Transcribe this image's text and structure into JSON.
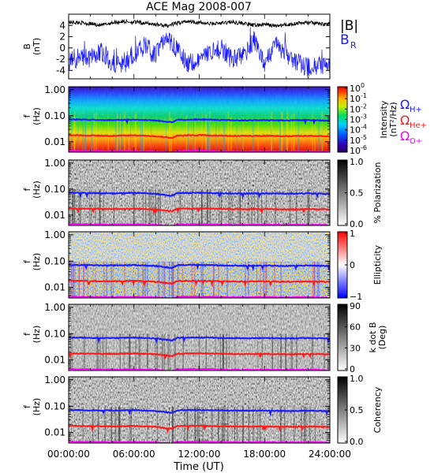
{
  "figure": {
    "title": "ACE Mag 2008-007",
    "xlabel": "Time (UT)",
    "x_ticks": [
      "00:00:00",
      "06:00:00",
      "12:00:00",
      "18:00:00",
      "24:00:00"
    ],
    "x_range_hours": [
      0,
      24
    ]
  },
  "chart_data": [
    {
      "type": "line",
      "panel": "magnetic-field",
      "ylabel": "B\n(nT)",
      "ylim": [
        -5.5,
        6
      ],
      "y_ticks": [
        "4",
        "2",
        "0",
        "-2",
        "-4"
      ],
      "y_tick_values": [
        4,
        2,
        0,
        -2,
        -4
      ],
      "legend": [
        "|B|",
        "B"
      ],
      "legend_sub": [
        "",
        "R"
      ],
      "series": [
        {
          "name": "|B|",
          "color": "#000000",
          "x": [
            0,
            1,
            2,
            3,
            4,
            5,
            6,
            7,
            8,
            9,
            10,
            11,
            12,
            13,
            14,
            15,
            16,
            17,
            18,
            19,
            20,
            21,
            22,
            23,
            24
          ],
          "values": [
            4.6,
            4.5,
            4.3,
            4.0,
            4.5,
            4.7,
            4.6,
            4.4,
            4.2,
            3.9,
            4.4,
            4.8,
            4.5,
            4.3,
            4.4,
            4.6,
            4.4,
            4.0,
            4.2,
            3.9,
            4.1,
            4.4,
            4.5,
            4.3,
            4.2
          ]
        },
        {
          "name": "B_R",
          "color": "#1a1aff",
          "x": [
            0,
            1,
            2,
            3,
            4,
            5,
            6,
            7,
            8,
            9,
            10,
            11,
            12,
            13,
            14,
            15,
            16,
            17,
            18,
            19,
            20,
            21,
            22,
            23,
            24
          ],
          "values": [
            -2.5,
            -1.5,
            -2.0,
            -0.5,
            -2.5,
            -3.0,
            -1.0,
            0.5,
            -1.5,
            2.0,
            -0.5,
            -3.0,
            -2.5,
            -1.0,
            0.0,
            -2.0,
            -1.5,
            1.5,
            -3.0,
            0.5,
            -1.0,
            -2.5,
            -3.5,
            -3.0,
            -3.5
          ]
        }
      ]
    },
    {
      "type": "heatmap",
      "panel": "intensity",
      "ylabel": "f\n(Hz)",
      "y_ticks": [
        "1.00",
        "0.10",
        "0.01"
      ],
      "colorbar_ticks": [
        "10",
        "10",
        "10",
        "10",
        "10",
        "10",
        "10"
      ],
      "colorbar_exponents": [
        "0",
        "-1",
        "-2",
        "-3",
        "-4",
        "-5",
        "-6"
      ],
      "colorbar_label": "Intensity\n(nT²/Hz)",
      "legend": [
        "Ω",
        "Ω",
        "Ω"
      ],
      "legend_sub": [
        "H+",
        "He+",
        "O+"
      ]
    },
    {
      "type": "heatmap",
      "panel": "polarization",
      "ylabel": "f\n(Hz)",
      "y_ticks": [
        "1.00",
        "0.10",
        "0.01"
      ],
      "colorbar_ticks": [
        "1.0",
        "0.5",
        "0.0"
      ],
      "colorbar_label": "% Polarization"
    },
    {
      "type": "heatmap",
      "panel": "ellipticity",
      "ylabel": "f\n(Hz)",
      "y_ticks": [
        "1.00",
        "0.10",
        "0.01"
      ],
      "colorbar_ticks": [
        "1",
        "0",
        "−1"
      ],
      "colorbar_label": "Ellipticity"
    },
    {
      "type": "heatmap",
      "panel": "k-dot-b",
      "ylabel": "f\n(Hz)",
      "y_ticks": [
        "1.00",
        "0.10",
        "0.01"
      ],
      "colorbar_ticks": [
        "90",
        "60",
        "30",
        "0"
      ],
      "colorbar_label": "k dot B\n(Deg)"
    },
    {
      "type": "heatmap",
      "panel": "coherency",
      "ylabel": "f\n(Hz)",
      "y_ticks": [
        "1.00",
        "0.10",
        "0.01"
      ],
      "colorbar_ticks": [
        "1.0",
        "0.5",
        "0.0"
      ],
      "colorbar_label": "Coherency"
    }
  ],
  "gyrofrequency_lines": {
    "ylim_hz": [
      0.004,
      1.3
    ],
    "x": [
      0,
      2,
      4,
      6,
      8,
      9.5,
      10,
      12,
      14,
      16,
      18,
      20,
      22,
      24
    ],
    "series": [
      {
        "name": "Ω H+",
        "color": "#1a1aff",
        "values": [
          0.072,
          0.07,
          0.068,
          0.071,
          0.066,
          0.055,
          0.07,
          0.072,
          0.069,
          0.067,
          0.068,
          0.066,
          0.068,
          0.065
        ]
      },
      {
        "name": "Ω He+",
        "color": "#ff1a1a",
        "values": [
          0.018,
          0.0175,
          0.017,
          0.0178,
          0.0165,
          0.014,
          0.0175,
          0.018,
          0.0172,
          0.0168,
          0.017,
          0.0165,
          0.017,
          0.0163
        ]
      },
      {
        "name": "Ω O+",
        "color": "#ff00ff",
        "values": [
          0.0045,
          0.0044,
          0.0043,
          0.0044,
          0.0042,
          0.0038,
          0.0044,
          0.0045,
          0.0043,
          0.0042,
          0.0043,
          0.0042,
          0.0043,
          0.0041
        ]
      }
    ]
  },
  "colors": {
    "h_plus": "#1a1aff",
    "he_plus": "#ff1a1a",
    "o_plus": "#ff00ff",
    "b_r": "#1a1aff",
    "b_mag": "#000000"
  }
}
